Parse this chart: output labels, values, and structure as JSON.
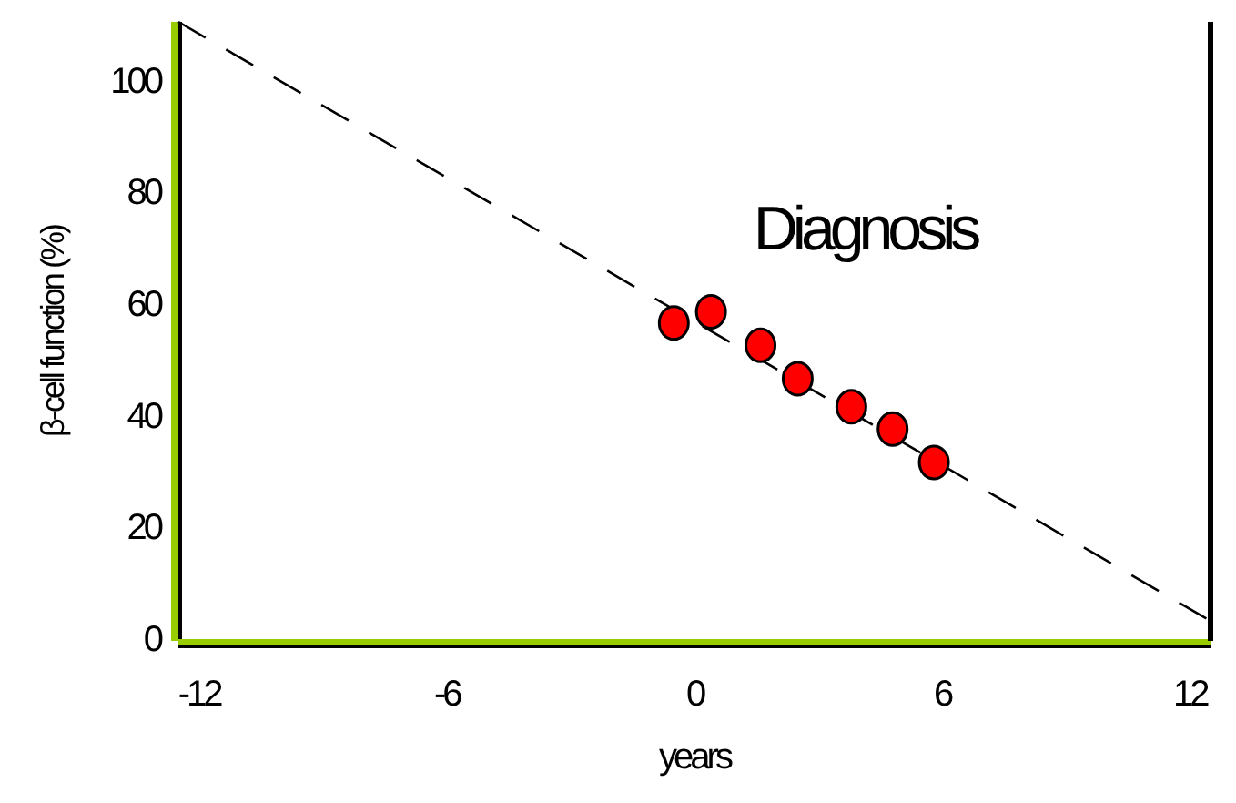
{
  "chart_data": {
    "type": "scatter",
    "xlabel": "years",
    "ylabel": "β-cell function (%)",
    "annotations": [
      "Diagnosis"
    ],
    "xlim": [
      -12.5,
      12.5
    ],
    "ylim": [
      0,
      111
    ],
    "xticks": [
      -12,
      -6,
      0,
      6,
      12
    ],
    "yticks": [
      0,
      20,
      40,
      60,
      80,
      100
    ],
    "grid": false,
    "series": [
      {
        "type": "line",
        "color": "#000000",
        "x": [
          -12.5,
          12.4
        ],
        "values": [
          111,
          4
        ],
        "marker": "none",
        "line_style": "dashed"
      },
      {
        "color": "#ff0000",
        "x": [
          -0.5,
          0.4,
          1.6,
          2.5,
          3.8,
          4.8,
          5.8
        ],
        "values": [
          57,
          59,
          53,
          47,
          42,
          38,
          32
        ],
        "marker": "circle"
      }
    ]
  }
}
